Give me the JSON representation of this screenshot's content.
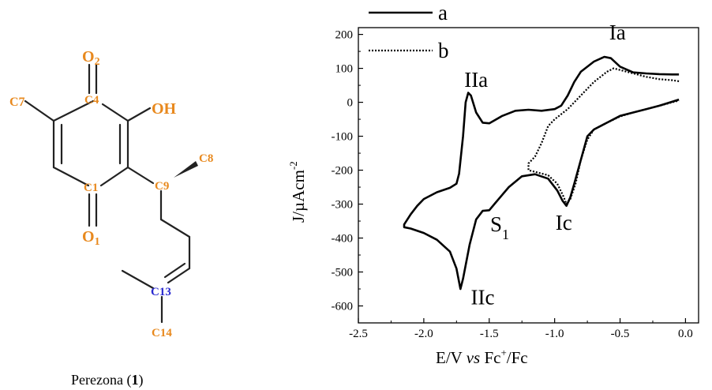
{
  "molecule": {
    "atoms": {
      "o2": "O2",
      "c4": "C4",
      "c7": "C7",
      "oh": "OH",
      "c8": "C8",
      "c1": "C1",
      "c9": "C9",
      "o1": "O1",
      "c13": "C13",
      "c14": "C14"
    },
    "colors": {
      "atom": "#e8891e",
      "c13": "#2a2ad0",
      "bond": "#222222"
    }
  },
  "caption": {
    "name": "Perezona (",
    "number": "1",
    "close": ")"
  },
  "chart_data": {
    "type": "line",
    "xlabel": "E/V vs Fc+/Fc",
    "ylabel": "J/µAcm-2",
    "xlim": [
      -2.5,
      0.1
    ],
    "ylim": [
      -650,
      220
    ],
    "x_ticks": [
      "-2.5",
      "-2.0",
      "-1.5",
      "-1.0",
      "-0.5",
      "0.0"
    ],
    "y_ticks": [
      "200",
      "100",
      "0",
      "-100",
      "-200",
      "-300",
      "-400",
      "-500",
      "-600"
    ],
    "x_tick_values": [
      -2.5,
      -2.0,
      -1.5,
      -1.0,
      -0.5,
      0.0
    ],
    "y_tick_values": [
      200,
      100,
      0,
      -100,
      -200,
      -300,
      -400,
      -500,
      -600
    ],
    "legend": {
      "position": "top-left",
      "entries": [
        {
          "label": "a",
          "style": "solid"
        },
        {
          "label": "b",
          "style": "dotted"
        }
      ]
    },
    "annotations": [
      {
        "text": "IIa",
        "x": -1.6,
        "y": 45
      },
      {
        "text": "Ia",
        "x": -0.52,
        "y": 185
      },
      {
        "text": "S",
        "sub": "1",
        "x": -1.42,
        "y": -380
      },
      {
        "text": "Ic",
        "x": -0.93,
        "y": -375
      },
      {
        "text": "IIc",
        "x": -1.55,
        "y": -595
      }
    ],
    "series": [
      {
        "name": "a",
        "style": "solid",
        "color": "#000000",
        "points": [
          [
            -0.05,
            8
          ],
          [
            -0.1,
            2
          ],
          [
            -0.2,
            -10
          ],
          [
            -0.3,
            -20
          ],
          [
            -0.4,
            -30
          ],
          [
            -0.5,
            -40
          ],
          [
            -0.6,
            -60
          ],
          [
            -0.7,
            -80
          ],
          [
            -0.75,
            -100
          ],
          [
            -0.8,
            -170
          ],
          [
            -0.85,
            -240
          ],
          [
            -0.88,
            -280
          ],
          [
            -0.91,
            -305
          ],
          [
            -0.94,
            -290
          ],
          [
            -0.98,
            -260
          ],
          [
            -1.05,
            -225
          ],
          [
            -1.15,
            -212
          ],
          [
            -1.25,
            -218
          ],
          [
            -1.35,
            -250
          ],
          [
            -1.45,
            -295
          ],
          [
            -1.5,
            -318
          ],
          [
            -1.55,
            -320
          ],
          [
            -1.6,
            -345
          ],
          [
            -1.65,
            -420
          ],
          [
            -1.7,
            -520
          ],
          [
            -1.72,
            -550
          ],
          [
            -1.75,
            -490
          ],
          [
            -1.8,
            -440
          ],
          [
            -1.9,
            -405
          ],
          [
            -2.0,
            -385
          ],
          [
            -2.1,
            -372
          ],
          [
            -2.15,
            -368
          ],
          [
            -2.15,
            -360
          ],
          [
            -2.1,
            -330
          ],
          [
            -2.05,
            -305
          ],
          [
            -2.0,
            -285
          ],
          [
            -1.9,
            -265
          ],
          [
            -1.8,
            -252
          ],
          [
            -1.75,
            -240
          ],
          [
            -1.73,
            -210
          ],
          [
            -1.7,
            -100
          ],
          [
            -1.68,
            0
          ],
          [
            -1.66,
            28
          ],
          [
            -1.64,
            20
          ],
          [
            -1.6,
            -30
          ],
          [
            -1.55,
            -60
          ],
          [
            -1.5,
            -62
          ],
          [
            -1.4,
            -40
          ],
          [
            -1.3,
            -25
          ],
          [
            -1.2,
            -22
          ],
          [
            -1.1,
            -25
          ],
          [
            -1.0,
            -20
          ],
          [
            -0.95,
            -10
          ],
          [
            -0.9,
            20
          ],
          [
            -0.85,
            60
          ],
          [
            -0.8,
            90
          ],
          [
            -0.7,
            120
          ],
          [
            -0.62,
            134
          ],
          [
            -0.57,
            130
          ],
          [
            -0.5,
            105
          ],
          [
            -0.4,
            88
          ],
          [
            -0.3,
            85
          ],
          [
            -0.2,
            83
          ],
          [
            -0.1,
            82
          ],
          [
            -0.05,
            82
          ]
        ]
      },
      {
        "name": "b",
        "style": "dotted",
        "color": "#000000",
        "points": [
          [
            -0.05,
            62
          ],
          [
            -0.1,
            65
          ],
          [
            -0.2,
            68
          ],
          [
            -0.3,
            75
          ],
          [
            -0.4,
            85
          ],
          [
            -0.5,
            95
          ],
          [
            -0.55,
            100
          ],
          [
            -0.6,
            90
          ],
          [
            -0.7,
            60
          ],
          [
            -0.8,
            20
          ],
          [
            -0.9,
            -20
          ],
          [
            -1.0,
            -50
          ],
          [
            -1.05,
            -70
          ],
          [
            -1.1,
            -120
          ],
          [
            -1.15,
            -160
          ],
          [
            -1.2,
            -180
          ],
          [
            -1.2,
            -200
          ],
          [
            -1.15,
            -205
          ],
          [
            -1.05,
            -215
          ],
          [
            -0.98,
            -240
          ],
          [
            -0.93,
            -280
          ],
          [
            -0.91,
            -300
          ],
          [
            -0.88,
            -285
          ],
          [
            -0.84,
            -240
          ],
          [
            -0.8,
            -170
          ],
          [
            -0.75,
            -110
          ],
          [
            -0.7,
            -80
          ],
          [
            -0.6,
            -60
          ],
          [
            -0.5,
            -42
          ],
          [
            -0.4,
            -30
          ],
          [
            -0.3,
            -20
          ],
          [
            -0.2,
            -10
          ],
          [
            -0.1,
            0
          ],
          [
            -0.05,
            5
          ]
        ]
      }
    ]
  }
}
